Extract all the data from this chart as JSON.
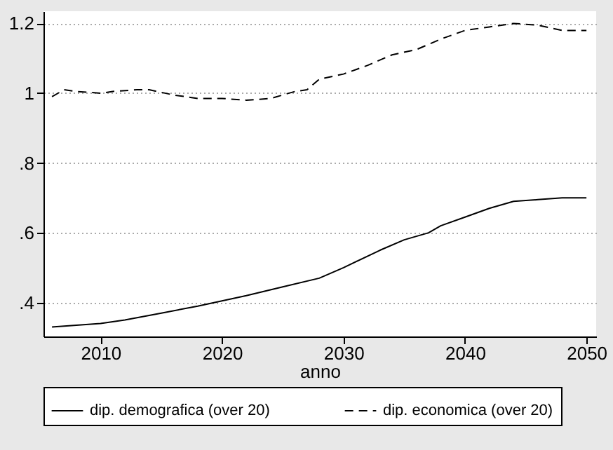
{
  "chart_data": {
    "type": "line",
    "xlabel": "anno",
    "x": [
      2006,
      2008,
      2010,
      2012,
      2015,
      2018,
      2020,
      2022,
      2025,
      2028,
      2030,
      2033,
      2035,
      2037,
      2038,
      2040,
      2042,
      2044,
      2046,
      2048,
      2050
    ],
    "series": [
      {
        "name": "dip. demografica (over 20)",
        "color": "#000000",
        "line_style": "solid",
        "values": [
          0.33,
          0.335,
          0.34,
          0.35,
          0.37,
          0.39,
          0.405,
          0.42,
          0.445,
          0.47,
          0.5,
          0.55,
          0.58,
          0.6,
          0.62,
          0.645,
          0.67,
          0.69,
          0.695,
          0.7,
          0.7
        ]
      },
      {
        "name": "dip. economica (over 20)",
        "color": "#000000",
        "line_style": "dashed",
        "x": [
          2006,
          2007,
          2008,
          2010,
          2011,
          2013,
          2014,
          2016,
          2018,
          2020,
          2022,
          2024,
          2026,
          2027,
          2028,
          2030,
          2032,
          2034,
          2036,
          2038,
          2040,
          2042,
          2044,
          2046,
          2048,
          2050
        ],
        "values": [
          0.99,
          1.01,
          1.005,
          1.0,
          1.005,
          1.01,
          1.01,
          0.995,
          0.985,
          0.985,
          0.98,
          0.985,
          1.005,
          1.01,
          1.04,
          1.055,
          1.08,
          1.11,
          1.125,
          1.155,
          1.18,
          1.19,
          1.2,
          1.195,
          1.18,
          1.18
        ]
      }
    ],
    "xlim": [
      2005.3,
      2050.8
    ],
    "xticks": [
      2010,
      2020,
      2030,
      2040,
      2050
    ],
    "ylim": [
      0.303,
      1.235
    ],
    "yticks": [
      {
        "value": 0.4,
        "label": ".4"
      },
      {
        "value": 0.6,
        "label": ".6"
      },
      {
        "value": 0.8,
        "label": ".8"
      },
      {
        "value": 1,
        "label": "1"
      },
      {
        "value": 1.2,
        "label": "1.2"
      }
    ],
    "grid": "y",
    "legend": "bottom"
  }
}
